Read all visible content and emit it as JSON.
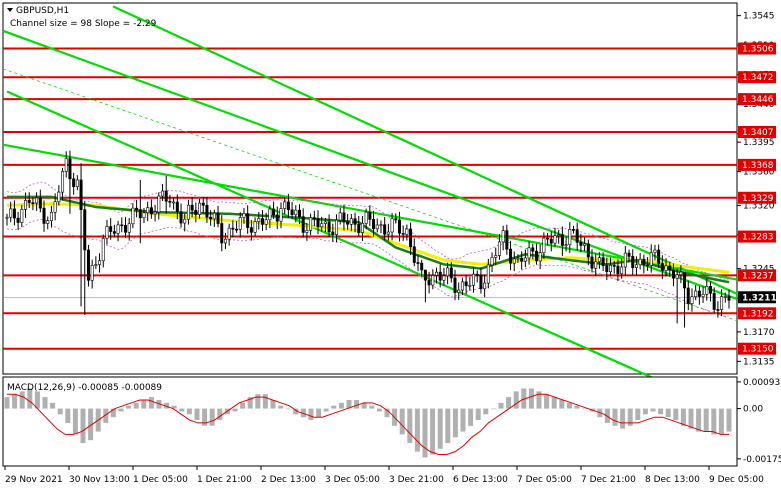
{
  "chart_data": {
    "type": "candlestick",
    "symbol": "GBPUSD,H1",
    "channel_text": "Channel size = 98 Slope = -2.29",
    "macd_label": "MACD(12,26,9) -0.00085 -0.00089",
    "price_axis": {
      "ylim": [
        1.312,
        1.356
      ],
      "ticks": [
        "1.3545",
        "1.3510",
        "1.3475",
        "1.3440",
        "1.3405",
        "1.3395",
        "1.3360",
        "1.3320",
        "1.3285",
        "1.3245",
        "1.3210",
        "1.3170",
        "1.3135"
      ]
    },
    "levels": [
      "1.3506",
      "1.3472",
      "1.3446",
      "1.3407",
      "1.3368",
      "1.3329",
      "1.3283",
      "1.3237",
      "1.3192",
      "1.3150"
    ],
    "current_price": "1.3211",
    "macd_axis": {
      "ylim": [
        -0.002,
        0.0011
      ],
      "ticks": [
        "0.00093",
        "0.00",
        "-0.00175"
      ]
    },
    "x_labels": [
      "29 Nov 2021",
      "30 Nov 13:00",
      "1 Dec 05:00",
      "1 Dec 21:00",
      "2 Dec 13:00",
      "3 Dec 05:00",
      "3 Dec 21:00",
      "6 Dec 13:00",
      "7 Dec 05:00",
      "7 Dec 21:00",
      "8 Dec 13:00",
      "9 Dec 05:00"
    ],
    "candles": {
      "anchors": [
        [
          0,
          1.33
        ],
        [
          6,
          1.3325
        ],
        [
          12,
          1.3305
        ],
        [
          16,
          1.337
        ],
        [
          19,
          1.3345
        ],
        [
          22,
          1.323
        ],
        [
          26,
          1.328
        ],
        [
          32,
          1.33
        ],
        [
          38,
          1.3315
        ],
        [
          44,
          1.333
        ],
        [
          48,
          1.33
        ],
        [
          52,
          1.3325
        ],
        [
          58,
          1.3285
        ],
        [
          64,
          1.33
        ],
        [
          70,
          1.33
        ],
        [
          74,
          1.332
        ],
        [
          80,
          1.33
        ],
        [
          86,
          1.3295
        ],
        [
          90,
          1.33
        ],
        [
          96,
          1.33
        ],
        [
          102,
          1.3295
        ],
        [
          108,
          1.329
        ],
        [
          112,
          1.323
        ],
        [
          116,
          1.324
        ],
        [
          122,
          1.3225
        ],
        [
          128,
          1.323
        ],
        [
          134,
          1.328
        ],
        [
          138,
          1.325
        ],
        [
          142,
          1.3265
        ],
        [
          148,
          1.328
        ],
        [
          152,
          1.3285
        ],
        [
          156,
          1.327
        ],
        [
          160,
          1.3245
        ],
        [
          166,
          1.325
        ],
        [
          172,
          1.3255
        ],
        [
          176,
          1.3255
        ],
        [
          180,
          1.324
        ],
        [
          184,
          1.3215
        ],
        [
          188,
          1.3215
        ],
        [
          192,
          1.3205
        ],
        [
          194,
          1.321
        ]
      ],
      "spikes": [
        [
          20,
          1.337,
          1.32
        ],
        [
          17,
          1.3385,
          1.331
        ],
        [
          21,
          1.3325,
          1.319
        ],
        [
          36,
          1.335,
          1.3275
        ],
        [
          43,
          1.3355,
          1.331
        ],
        [
          113,
          1.324,
          1.3205
        ],
        [
          150,
          1.3295,
          1.326
        ],
        [
          181,
          1.3245,
          1.318
        ],
        [
          183,
          1.3225,
          1.3175
        ]
      ]
    },
    "ma_green": [
      [
        0,
        1.333
      ],
      [
        12,
        1.333
      ],
      [
        24,
        1.3318
      ],
      [
        40,
        1.3312
      ],
      [
        60,
        1.331
      ],
      [
        80,
        1.3305
      ],
      [
        95,
        1.33
      ],
      [
        105,
        1.327
      ],
      [
        118,
        1.325
      ],
      [
        128,
        1.3245
      ],
      [
        140,
        1.3262
      ],
      [
        152,
        1.3255
      ],
      [
        162,
        1.325
      ],
      [
        170,
        1.3255
      ],
      [
        178,
        1.3245
      ],
      [
        188,
        1.3235
      ],
      [
        196,
        1.3228
      ]
    ],
    "ma_yellow": [
      [
        0,
        1.332
      ],
      [
        12,
        1.3322
      ],
      [
        24,
        1.332
      ],
      [
        40,
        1.331
      ],
      [
        60,
        1.3302
      ],
      [
        80,
        1.3296
      ],
      [
        95,
        1.329
      ],
      [
        105,
        1.3275
      ],
      [
        118,
        1.3255
      ],
      [
        128,
        1.325
      ],
      [
        140,
        1.3255
      ],
      [
        152,
        1.3258
      ],
      [
        162,
        1.3255
      ],
      [
        172,
        1.3255
      ],
      [
        182,
        1.3248
      ],
      [
        196,
        1.324
      ]
    ],
    "macd_hist": [
      0.0004,
      0.0005,
      0.0006,
      0.0007,
      0.0006,
      0.0004,
      0.0002,
      -0.0002,
      -0.0005,
      -0.0009,
      -0.0012,
      -0.0011,
      -0.0008,
      -0.0005,
      -0.0003,
      -0.0001,
      0.0001,
      0.0002,
      0.0003,
      0.0004,
      0.0003,
      0.0002,
      0.0001,
      -0.0001,
      -0.0002,
      -0.0004,
      -0.0006,
      -0.0006,
      -0.0004,
      -0.0002,
      -0.0001,
      0.0002,
      0.0004,
      0.0005,
      0.0005,
      0.0003,
      0.0001,
      0.0,
      -0.0002,
      -0.0003,
      -0.0004,
      -0.0003,
      -0.0001,
      0.0001,
      0.0002,
      0.0003,
      0.0003,
      0.0002,
      0.0001,
      -0.0001,
      -0.0003,
      -0.0006,
      -0.0009,
      -0.0012,
      -0.0015,
      -0.0017,
      -0.0016,
      -0.0014,
      -0.0012,
      -0.001,
      -0.0008,
      -0.0006,
      -0.0004,
      -0.0002,
      0.0,
      0.0002,
      0.0004,
      0.0006,
      0.0007,
      0.0007,
      0.0006,
      0.0005,
      0.0004,
      0.0003,
      0.0002,
      0.0001,
      0.0,
      -0.0001,
      -0.0003,
      -0.0005,
      -0.0006,
      -0.0007,
      -0.0006,
      -0.0004,
      -0.0002,
      -0.0001,
      -0.0002,
      -0.0003,
      -0.0004,
      -0.0006,
      -0.0007,
      -0.0008,
      -0.0008,
      -0.0009,
      -0.0009,
      -0.0008
    ],
    "macd_signal": [
      0.0005,
      0.0005,
      0.0004,
      0.0002,
      -0.0001,
      -0.0004,
      -0.0007,
      -0.0009,
      -0.0009,
      -0.0008,
      -0.0006,
      -0.0004,
      -0.0002,
      0.0,
      0.0001,
      0.0002,
      0.0003,
      0.0003,
      0.0002,
      0.0001,
      0.0,
      -0.0002,
      -0.0004,
      -0.0005,
      -0.0005,
      -0.0004,
      -0.0002,
      0.0,
      0.0002,
      0.0003,
      0.0004,
      0.0004,
      0.0003,
      0.0002,
      0.0001,
      -0.0001,
      -0.0002,
      -0.0003,
      -0.0003,
      -0.0002,
      -0.0001,
      0.0,
      0.0001,
      0.0002,
      0.0002,
      0.0001,
      -0.0001,
      -0.0004,
      -0.0007,
      -0.001,
      -0.0013,
      -0.0015,
      -0.0016,
      -0.0016,
      -0.0015,
      -0.0013,
      -0.001,
      -0.0008,
      -0.0005,
      -0.0003,
      -0.0001,
      0.0001,
      0.0003,
      0.0004,
      0.0005,
      0.0005,
      0.0004,
      0.0003,
      0.0002,
      0.0001,
      0.0,
      -0.0001,
      -0.0002,
      -0.0004,
      -0.0005,
      -0.0005,
      -0.0005,
      -0.0004,
      -0.0003,
      -0.0003,
      -0.0004,
      -0.0005,
      -0.0006,
      -0.0007,
      -0.0008,
      -0.0008,
      -0.0009,
      -0.0009
    ],
    "colors": {
      "level": "#e00000",
      "channel": "#00dd00",
      "ma_green": "#1a7d1a",
      "ma_yellow": "#f0f000",
      "candle": "#000000",
      "envelope": "#c060c0",
      "macd_hist": "#b0b0b0",
      "macd_signal": "#dd0000"
    }
  }
}
